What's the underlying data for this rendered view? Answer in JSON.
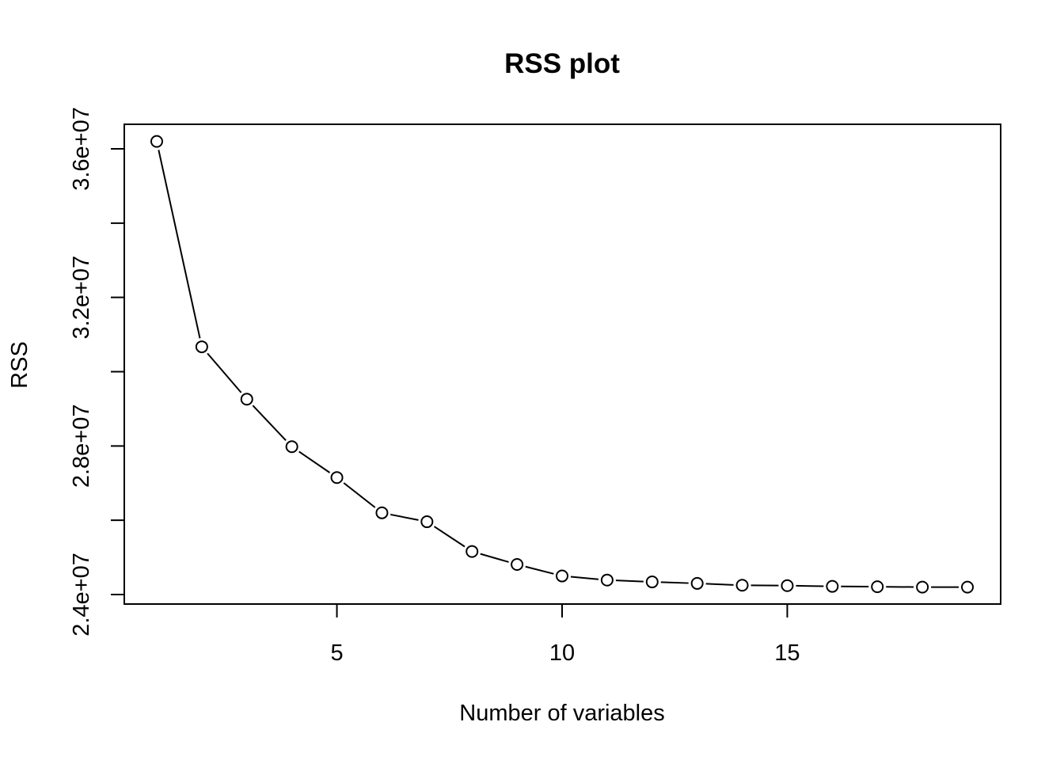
{
  "chart_data": {
    "type": "line",
    "title": "RSS plot",
    "xlabel": "Number of variables",
    "ylabel": "RSS",
    "xlim": [
      1,
      19
    ],
    "ylim": [
      24000000,
      36000000
    ],
    "x_ticks": [
      5,
      10,
      15
    ],
    "x_tick_labels": [
      "5",
      "10",
      "15"
    ],
    "y_ticks": [
      24000000,
      26000000,
      28000000,
      30000000,
      32000000,
      34000000,
      36000000
    ],
    "y_tick_labels": [
      "2.4e+07",
      "",
      "2.8e+07",
      "",
      "3.2e+07",
      "",
      "3.6e+07"
    ],
    "grid": false,
    "marker": "open-circle",
    "line_style": "both",
    "series": [
      {
        "x": [
          1,
          2,
          3,
          4,
          5,
          6,
          7,
          8,
          9,
          10,
          11,
          12,
          13,
          14,
          15,
          16,
          17,
          18,
          19
        ],
        "values": [
          36200000,
          30670000,
          29260000,
          27980000,
          27150000,
          26200000,
          25960000,
          25160000,
          24810000,
          24500000,
          24390000,
          24340000,
          24300000,
          24250000,
          24240000,
          24220000,
          24210000,
          24200000,
          24200000
        ]
      }
    ]
  }
}
